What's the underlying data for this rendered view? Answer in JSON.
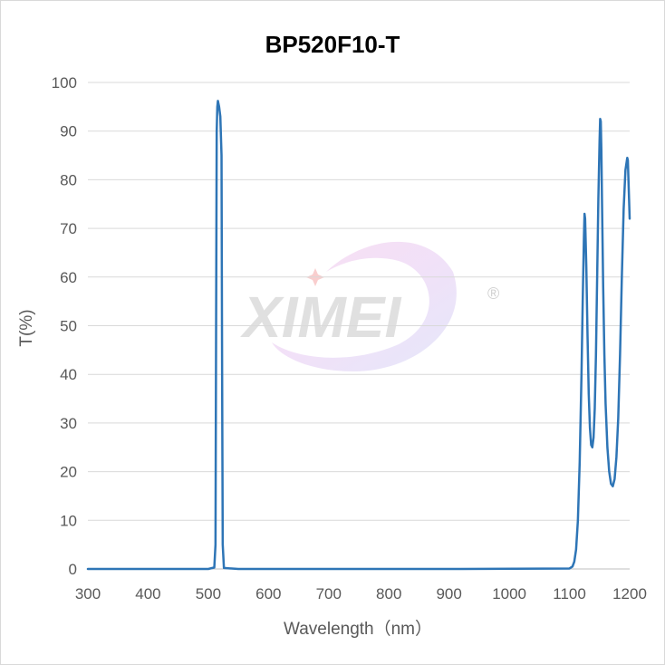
{
  "chart_data": {
    "type": "line",
    "title": "BP520F10-T",
    "xlabel": "Wavelength（nm）",
    "ylabel": "T(%)",
    "xlim": [
      300,
      1200
    ],
    "ylim": [
      0,
      100
    ],
    "x_ticks": [
      "300",
      "400",
      "500",
      "600",
      "700",
      "800",
      "900",
      "1000",
      "1100",
      "1200"
    ],
    "y_ticks": [
      "0",
      "10",
      "20",
      "30",
      "40",
      "50",
      "60",
      "70",
      "80",
      "90",
      "100"
    ],
    "grid": "horizontal",
    "line_color": "#2e75b6",
    "series": [
      {
        "x": [
          300,
          500,
          510,
          512,
          513,
          514,
          515,
          516,
          518,
          520,
          522,
          523,
          524,
          526,
          550,
          700,
          900,
          1100,
          1105,
          1108,
          1111,
          1114,
          1117,
          1120,
          1122,
          1124,
          1125,
          1126,
          1128,
          1130,
          1132,
          1134,
          1136,
          1138,
          1140,
          1142,
          1144,
          1146,
          1148,
          1150,
          1151,
          1152,
          1153,
          1154,
          1156,
          1158,
          1160,
          1163,
          1166,
          1169,
          1172,
          1175,
          1178,
          1181,
          1184,
          1187,
          1190,
          1193,
          1196,
          1197,
          1198,
          1199,
          1200
        ],
        "y": [
          0,
          0,
          0.3,
          5,
          50,
          90,
          95,
          96.2,
          95,
          93,
          85,
          40,
          5,
          0.2,
          0,
          0,
          0,
          0.1,
          0.5,
          1.5,
          4,
          10,
          22,
          40,
          55,
          68,
          73,
          72,
          62,
          48,
          36,
          29,
          25.5,
          25,
          27,
          33,
          44,
          60,
          76,
          88,
          92.5,
          92,
          86,
          76,
          58,
          44,
          34,
          25,
          20,
          17.5,
          17,
          18.5,
          23,
          31,
          44,
          60,
          74,
          82,
          84.5,
          84,
          80,
          76,
          72
        ]
      }
    ]
  },
  "watermark": {
    "brand": "XIMEI",
    "registered": "®"
  }
}
